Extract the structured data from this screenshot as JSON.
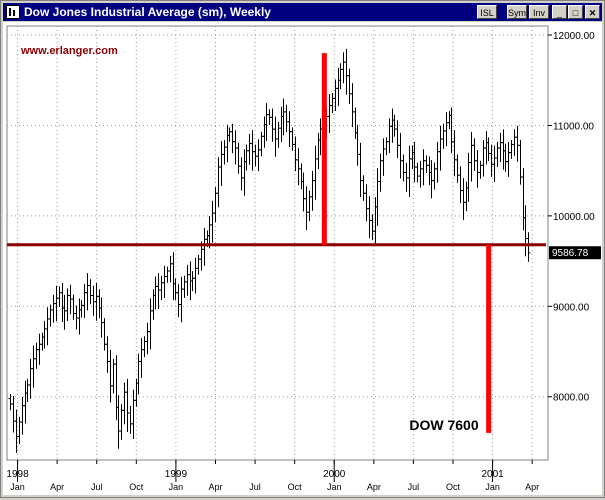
{
  "window": {
    "title": "Dow Jones Industrial Average (sm), Weekly",
    "buttons": {
      "isl": "ISL",
      "sym": "Sym",
      "inv": "Inv",
      "minimize": "_",
      "maximize": "□",
      "close": "✕"
    }
  },
  "chart_data": {
    "type": "ohlc",
    "watermark": "www.erlanger.com",
    "ylim": [
      7300,
      12100
    ],
    "y_ticks": [
      8000,
      9000,
      10000,
      11000,
      12000
    ],
    "y_tick_labels": [
      "8000.00",
      "9000.00",
      "10000.00",
      "11000.00",
      "12000.00"
    ],
    "x_ticks": [
      {
        "month": 0,
        "label": "Jan"
      },
      {
        "month": 3,
        "label": "Apr"
      },
      {
        "month": 6,
        "label": "Jul"
      },
      {
        "month": 9,
        "label": "Oct"
      },
      {
        "month": 12,
        "label": "Jan"
      },
      {
        "month": 15,
        "label": "Apr"
      },
      {
        "month": 18,
        "label": "Jul"
      },
      {
        "month": 21,
        "label": "Oct"
      },
      {
        "month": 24,
        "label": "Jan"
      },
      {
        "month": 27,
        "label": "Apr"
      },
      {
        "month": 30,
        "label": "Jul"
      },
      {
        "month": 33,
        "label": "Oct"
      },
      {
        "month": 36,
        "label": "Jan"
      },
      {
        "month": 39,
        "label": "Apr"
      }
    ],
    "years": [
      {
        "month": 0,
        "label": "1998"
      },
      {
        "month": 12,
        "label": "1999"
      },
      {
        "month": 24,
        "label": "2000"
      },
      {
        "month": 36,
        "label": "2001"
      }
    ],
    "x_range_months": [
      -0.8,
      40.2
    ],
    "last_value_label": "9586.78",
    "last_value": 9586.78,
    "support_level": 9680,
    "annotation": "DOW 7600",
    "projection": {
      "top_month": 23.25,
      "bottom_month": 23.25,
      "top_value": 11800,
      "bottom_value": 9680
    },
    "projection_down": {
      "month": 35.7,
      "top_value": 9680,
      "bottom_value": 7600
    },
    "closes": [
      7920,
      7730,
      7560,
      7720,
      7900,
      8040,
      8130,
      8310,
      8420,
      8520,
      8580,
      8660,
      8750,
      8860,
      8960,
      9030,
      9090,
      9150,
      8980,
      8950,
      9120,
      9080,
      8920,
      8870,
      8960,
      9010,
      9150,
      9230,
      9120,
      9050,
      9110,
      8980,
      8820,
      8580,
      8390,
      8120,
      8360,
      7880,
      7620,
      7850,
      8050,
      7820,
      7700,
      7960,
      8150,
      8390,
      8520,
      8610,
      8720,
      8950,
      9120,
      9220,
      9180,
      9260,
      9330,
      9390,
      9470,
      9250,
      9150,
      9020,
      9190,
      9270,
      9350,
      9280,
      9310,
      9420,
      9520,
      9630,
      9740,
      9780,
      9900,
      10030,
      10250,
      10540,
      10680,
      10760,
      10890,
      10930,
      10820,
      10750,
      10550,
      10420,
      10600,
      10720,
      10800,
      10710,
      10660,
      10730,
      10880,
      11010,
      11120,
      11090,
      10960,
      10850,
      10970,
      11100,
      11150,
      11040,
      10930,
      10790,
      10620,
      10520,
      10380,
      10190,
      10040,
      10210,
      10390,
      10630,
      10840,
      10960,
      10980,
      11100,
      11220,
      11300,
      11410,
      11500,
      11620,
      11700,
      11550,
      11350,
      11150,
      10920,
      10680,
      10390,
      10250,
      10080,
      9950,
      9830,
      10100,
      10380,
      10610,
      10740,
      10820,
      10990,
      11060,
      10960,
      10780,
      10610,
      10480,
      10420,
      10630,
      10700,
      10540,
      10440,
      10520,
      10610,
      10560,
      10480,
      10390,
      10520,
      10710,
      10850,
      10940,
      11030,
      11110,
      10820,
      10620,
      10450,
      10280,
      10150,
      10310,
      10590,
      10780,
      10610,
      10480,
      10560,
      10750,
      10810,
      10690,
      10570,
      10640,
      10750,
      10810,
      10720,
      10600,
      10700,
      10790,
      10870,
      10780,
      10430,
      9980,
      9750,
      9590
    ]
  }
}
